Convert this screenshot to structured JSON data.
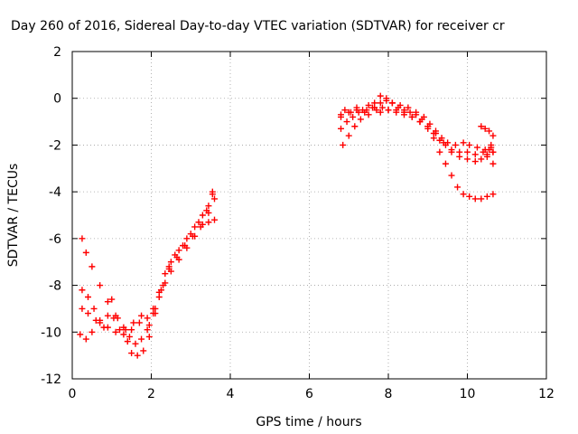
{
  "chart_data": {
    "type": "scatter",
    "title": "Day 260 of 2016, Sidereal Day-to-day VTEC variation (SDTVAR) for receiver cr",
    "xlabel": "GPS time / hours",
    "ylabel": "SDTVAR / TECUs",
    "xlim": [
      0,
      12
    ],
    "ylim": [
      -12,
      2
    ],
    "x_ticks": [
      0,
      2,
      4,
      6,
      8,
      10,
      12
    ],
    "y_ticks": [
      -12,
      -10,
      -8,
      -6,
      -4,
      -2,
      0,
      2
    ],
    "grid": true,
    "marker": "plus",
    "color": "#ff0000",
    "series": [
      {
        "values": [
          [
            0.25,
            -6.0
          ],
          [
            0.35,
            -6.6
          ],
          [
            0.5,
            -7.2
          ],
          [
            0.7,
            -8.0
          ],
          [
            0.9,
            -8.7
          ],
          [
            1.1,
            -9.3
          ],
          [
            1.3,
            -9.8
          ],
          [
            1.45,
            -10.2
          ],
          [
            1.6,
            -10.5
          ],
          [
            1.75,
            -10.3
          ],
          [
            1.9,
            -9.9
          ],
          [
            2.05,
            -9.2
          ],
          [
            2.2,
            -8.3
          ],
          [
            2.35,
            -7.5
          ],
          [
            2.5,
            -7.0
          ],
          [
            2.7,
            -6.5
          ],
          [
            2.9,
            -6.0
          ],
          [
            3.1,
            -5.5
          ],
          [
            3.3,
            -5.0
          ],
          [
            3.45,
            -4.6
          ],
          [
            3.55,
            -4.1
          ],
          [
            0.2,
            -10.1
          ],
          [
            0.35,
            -10.3
          ],
          [
            0.5,
            -10.0
          ],
          [
            0.7,
            -9.6
          ],
          [
            0.9,
            -9.3
          ],
          [
            1.05,
            -9.4
          ],
          [
            1.2,
            -9.9
          ],
          [
            1.4,
            -10.4
          ],
          [
            1.5,
            -10.9
          ],
          [
            1.65,
            -11.0
          ],
          [
            1.8,
            -10.8
          ],
          [
            1.95,
            -10.2
          ],
          [
            2.1,
            -9.2
          ],
          [
            2.25,
            -8.2
          ],
          [
            2.45,
            -7.3
          ],
          [
            2.65,
            -6.8
          ],
          [
            2.85,
            -6.3
          ],
          [
            3.05,
            -5.9
          ],
          [
            3.25,
            -5.5
          ],
          [
            3.45,
            -5.3
          ],
          [
            3.6,
            -5.2
          ],
          [
            0.25,
            -8.2
          ],
          [
            0.4,
            -8.5
          ],
          [
            0.55,
            -9.0
          ],
          [
            0.7,
            -9.5
          ],
          [
            0.9,
            -9.8
          ],
          [
            1.1,
            -10.0
          ],
          [
            1.3,
            -10.1
          ],
          [
            1.5,
            -9.9
          ],
          [
            1.7,
            -9.6
          ],
          [
            1.9,
            -9.4
          ],
          [
            2.05,
            -9.0
          ],
          [
            2.2,
            -8.5
          ],
          [
            2.35,
            -7.9
          ],
          [
            2.5,
            -7.4
          ],
          [
            2.7,
            -6.9
          ],
          [
            2.9,
            -6.4
          ],
          [
            3.1,
            -5.9
          ],
          [
            3.3,
            -5.4
          ],
          [
            3.45,
            -4.9
          ],
          [
            3.6,
            -4.3
          ],
          [
            0.25,
            -9.0
          ],
          [
            0.4,
            -9.2
          ],
          [
            0.6,
            -9.5
          ],
          [
            0.8,
            -9.8
          ],
          [
            1.0,
            -8.6
          ],
          [
            1.15,
            -9.4
          ],
          [
            1.35,
            -9.9
          ],
          [
            1.55,
            -9.6
          ],
          [
            1.75,
            -9.3
          ],
          [
            1.95,
            -9.7
          ],
          [
            2.1,
            -9.0
          ],
          [
            2.3,
            -8.0
          ],
          [
            2.45,
            -7.2
          ],
          [
            2.6,
            -6.7
          ],
          [
            2.8,
            -6.3
          ],
          [
            3.0,
            -5.8
          ],
          [
            3.2,
            -5.3
          ],
          [
            3.4,
            -4.8
          ],
          [
            3.55,
            -4.0
          ],
          [
            6.8,
            -0.8
          ],
          [
            6.9,
            -0.5
          ],
          [
            7.05,
            -0.6
          ],
          [
            7.2,
            -0.4
          ],
          [
            7.35,
            -0.5
          ],
          [
            7.5,
            -0.3
          ],
          [
            7.65,
            -0.2
          ],
          [
            7.8,
            0.1
          ],
          [
            7.95,
            0.0
          ],
          [
            8.1,
            -0.2
          ],
          [
            8.25,
            -0.4
          ],
          [
            8.4,
            -0.5
          ],
          [
            8.55,
            -0.6
          ],
          [
            8.7,
            -0.7
          ],
          [
            8.85,
            -0.9
          ],
          [
            9.0,
            -1.2
          ],
          [
            9.15,
            -1.5
          ],
          [
            9.3,
            -1.8
          ],
          [
            9.45,
            -2.0
          ],
          [
            9.6,
            -2.2
          ],
          [
            9.8,
            -2.3
          ],
          [
            10.0,
            -2.3
          ],
          [
            10.2,
            -2.4
          ],
          [
            10.4,
            -2.3
          ],
          [
            10.55,
            -2.2
          ],
          [
            10.65,
            -2.3
          ],
          [
            6.85,
            -2.0
          ],
          [
            7.0,
            -1.6
          ],
          [
            7.15,
            -1.2
          ],
          [
            7.3,
            -0.9
          ],
          [
            7.5,
            -0.7
          ],
          [
            7.7,
            -0.5
          ],
          [
            7.85,
            -0.4
          ],
          [
            8.0,
            -0.5
          ],
          [
            8.2,
            -0.6
          ],
          [
            8.4,
            -0.7
          ],
          [
            8.6,
            -0.8
          ],
          [
            8.8,
            -1.0
          ],
          [
            9.0,
            -1.3
          ],
          [
            9.15,
            -1.7
          ],
          [
            9.3,
            -2.3
          ],
          [
            9.45,
            -2.8
          ],
          [
            9.6,
            -3.3
          ],
          [
            9.75,
            -3.8
          ],
          [
            9.9,
            -4.1
          ],
          [
            10.05,
            -4.2
          ],
          [
            10.2,
            -4.3
          ],
          [
            10.35,
            -4.3
          ],
          [
            10.5,
            -4.2
          ],
          [
            10.65,
            -4.1
          ],
          [
            6.8,
            -1.3
          ],
          [
            6.95,
            -1.0
          ],
          [
            7.1,
            -0.8
          ],
          [
            7.25,
            -0.6
          ],
          [
            7.45,
            -0.5
          ],
          [
            7.65,
            -0.4
          ],
          [
            7.8,
            -0.2
          ],
          [
            7.95,
            -0.1
          ],
          [
            8.1,
            -0.2
          ],
          [
            8.3,
            -0.3
          ],
          [
            8.5,
            -0.4
          ],
          [
            8.7,
            -0.6
          ],
          [
            8.9,
            -0.8
          ],
          [
            9.05,
            -1.1
          ],
          [
            9.2,
            -1.4
          ],
          [
            9.35,
            -1.7
          ],
          [
            9.5,
            -1.9
          ],
          [
            9.7,
            -2.0
          ],
          [
            9.9,
            -1.9
          ],
          [
            10.05,
            -2.0
          ],
          [
            10.25,
            -2.1
          ],
          [
            10.45,
            -2.2
          ],
          [
            10.6,
            -2.1
          ],
          [
            6.8,
            -0.7
          ],
          [
            7.0,
            -0.6
          ],
          [
            7.2,
            -0.5
          ],
          [
            7.4,
            -0.6
          ],
          [
            7.6,
            -0.4
          ],
          [
            7.8,
            -0.6
          ],
          [
            8.0,
            -0.5
          ],
          [
            8.2,
            -0.5
          ],
          [
            8.4,
            -0.6
          ],
          [
            8.6,
            -0.8
          ],
          [
            8.8,
            -1.0
          ],
          [
            9.0,
            -1.2
          ],
          [
            9.2,
            -1.5
          ],
          [
            9.4,
            -1.9
          ],
          [
            9.6,
            -2.3
          ],
          [
            9.8,
            -2.5
          ],
          [
            10.0,
            -2.6
          ],
          [
            10.2,
            -2.7
          ],
          [
            10.35,
            -2.6
          ],
          [
            10.5,
            -2.4
          ],
          [
            10.65,
            -2.3
          ],
          [
            10.35,
            -1.2
          ],
          [
            10.45,
            -1.3
          ],
          [
            10.55,
            -1.4
          ],
          [
            10.65,
            -1.6
          ],
          [
            10.6,
            -2.0
          ],
          [
            10.5,
            -2.5
          ],
          [
            10.65,
            -2.8
          ]
        ]
      }
    ]
  }
}
